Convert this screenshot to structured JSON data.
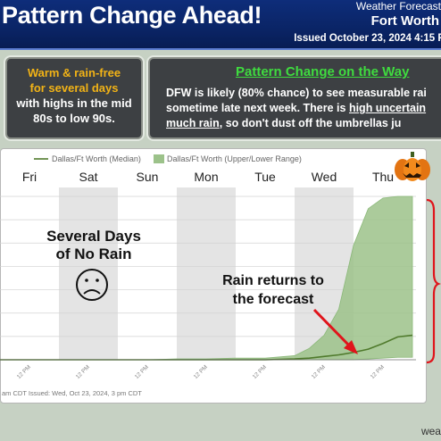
{
  "header": {
    "headline": "Pattern Change Ahead!",
    "brand": "Weather Forecast",
    "city": "Fort Worth",
    "issued": "Issued October 23, 2024 4:15 P"
  },
  "left_panel": {
    "line1": "Warm & rain-free",
    "line2": "for several days",
    "line3": "with highs in the mid",
    "line4": "80s to low 90s."
  },
  "right_panel": {
    "title": "Pattern Change on the Way",
    "l1": "DFW is likely (80% chance) to see measurable rai",
    "l2_a": "sometime late next week. There is ",
    "l2_b": "high uncertain",
    "l3_a": "much rain",
    "l3_b": ", so don't dust off the umbrellas ju"
  },
  "colors": {
    "header_bg": "#0a2465",
    "accent_yellow": "#f2b316",
    "accent_green": "#3fdc3f",
    "panel_bg": "#3d4043",
    "median_line": "#4f7a2c",
    "range_fill": "#9cc28a",
    "arrow": "#e0141b",
    "bracket": "#e0141b"
  },
  "chart_data": {
    "type": "area",
    "legend": {
      "median": "Dallas/Ft Worth (Median)",
      "range": "Dallas/Ft Worth (Upper/Lower Range)"
    },
    "days": [
      "Fri",
      "Sat",
      "Sun",
      "Mon",
      "Tue",
      "Wed",
      "Thu"
    ],
    "x_ticks": [
      "12 PM",
      "12 PM",
      "12 PM",
      "12 PM",
      "12 PM",
      "12 PM",
      "12 PM"
    ],
    "footer": "am CDT   Issued: Wed, Oct 23, 2024, 3 pm CDT",
    "x": [
      0,
      0.5,
      1,
      1.5,
      2,
      2.5,
      3,
      3.5,
      4,
      4.5,
      5,
      5.25,
      5.5,
      5.75,
      6,
      6.25,
      6.5,
      6.75,
      7
    ],
    "median": [
      0,
      0,
      0,
      0,
      0,
      0,
      0,
      0,
      0,
      0,
      0.01,
      0.02,
      0.04,
      0.06,
      0.09,
      0.13,
      0.2,
      0.28,
      0.3
    ],
    "upper": [
      0,
      0,
      0,
      0,
      0,
      0,
      0.01,
      0.01,
      0.02,
      0.02,
      0.05,
      0.14,
      0.3,
      0.62,
      1.4,
      1.85,
      1.98,
      2.0,
      2.0
    ],
    "lower": [
      0,
      0,
      0,
      0,
      0,
      0,
      0,
      0,
      0,
      0,
      0,
      0,
      0,
      0,
      0,
      0.01,
      0.02,
      0.03,
      0.03
    ],
    "ylim": [
      0,
      2.0
    ],
    "annotations": {
      "no_rain_1": "Several Days",
      "no_rain_2": "of No Rain",
      "rain_returns_1": "Rain returns to",
      "rain_returns_2": "the forecast"
    }
  },
  "footer": {
    "site": "weath"
  }
}
